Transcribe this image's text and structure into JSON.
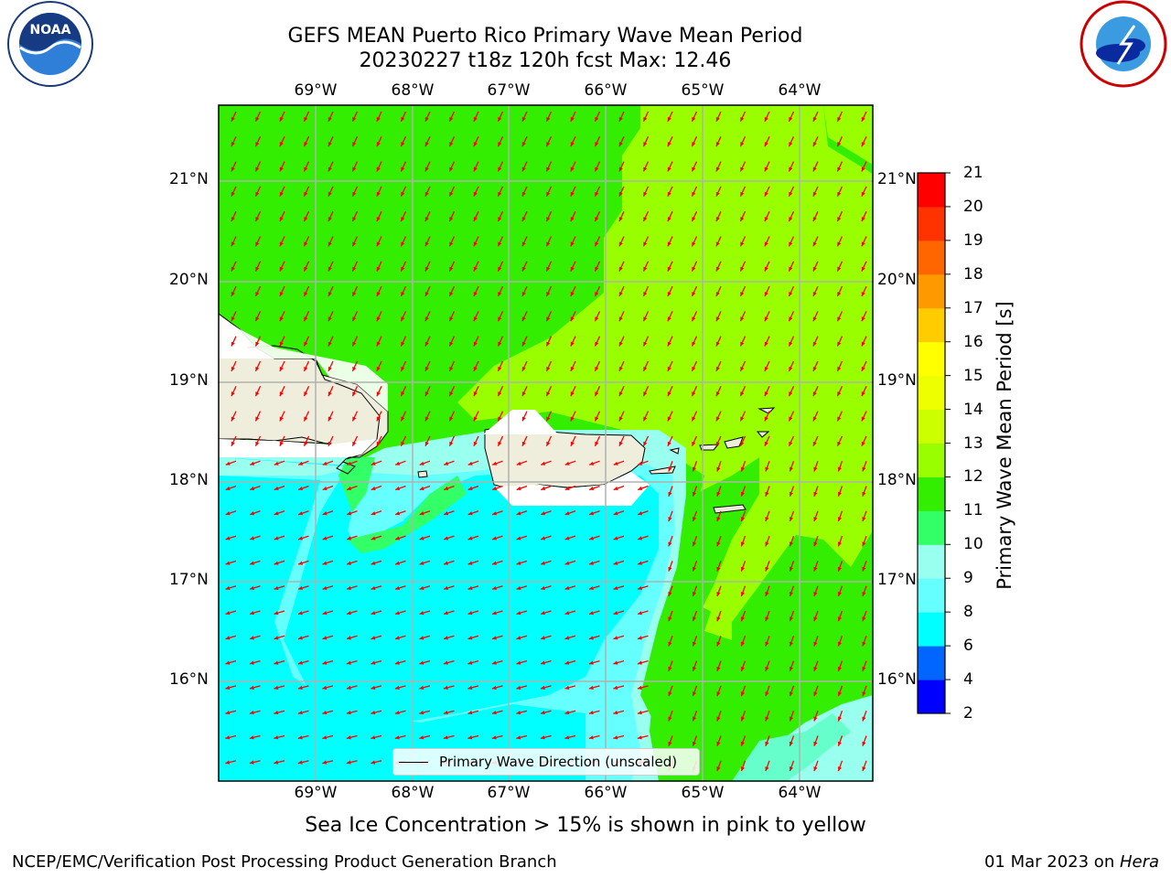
{
  "title": {
    "line1": "GEFS MEAN Puerto Rico Primary Wave Mean Period",
    "line2": "20230227 t18z 120h fcst   Max: 12.46"
  },
  "logos": {
    "left": {
      "text": "NOAA",
      "ring_text": "NATIONAL OCEANIC AND ATMOSPHERIC ADMINISTRATION · U.S. DEPARTMENT OF COMMERCE"
    },
    "right": {
      "ring_text": "NATIONAL WEATHER SERVICE"
    }
  },
  "axes": {
    "longitudes": [
      "69°W",
      "68°W",
      "67°W",
      "66°W",
      "65°W",
      "64°W"
    ],
    "latitudes": [
      "21°N",
      "20°N",
      "19°N",
      "18°N",
      "17°N",
      "16°N"
    ]
  },
  "colorbar": {
    "label": "Primary Wave Mean Period [s]",
    "ticks": [
      "2",
      "4",
      "6",
      "8",
      "9",
      "10",
      "11",
      "12",
      "13",
      "14",
      "15",
      "16",
      "17",
      "18",
      "19",
      "20",
      "21"
    ],
    "colors": [
      "#0000ff",
      "#0066ff",
      "#00ffff",
      "#66ffff",
      "#99ffee",
      "#33ff66",
      "#33ee00",
      "#99ff00",
      "#ccff00",
      "#eeff00",
      "#ffff00",
      "#ffcc00",
      "#ff9900",
      "#ff6600",
      "#ff3300",
      "#ff0000"
    ]
  },
  "legend": {
    "label": "Primary Wave Direction (unscaled)"
  },
  "caption": "Sea Ice Concentration > 15% is shown in pink to yellow",
  "footer": {
    "left": "NCEP/EMC/Verification Post Processing Product Generation Branch",
    "right_prefix": "01 Mar 2023 on ",
    "right_host": "Hera"
  },
  "colors": {
    "green_11_12": "#33ee00",
    "lime_12_13": "#99ff00",
    "cyan_6_8": "#00ffff",
    "lightcyan_8_9": "#66ffff",
    "aqua_9_10": "#99ffee",
    "land": "#efeedd",
    "arrow": "#ff0000"
  }
}
